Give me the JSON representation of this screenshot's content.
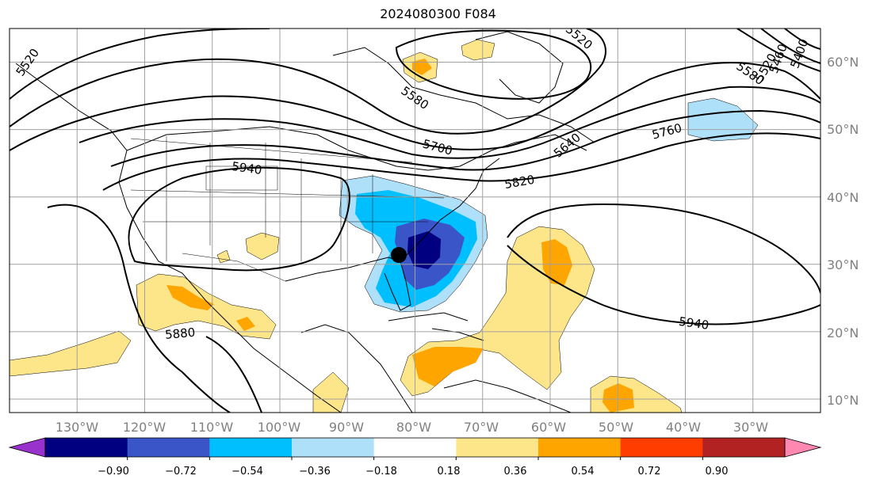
{
  "title": "2024080300 F084",
  "map": {
    "lon_range": [
      -140,
      -20
    ],
    "lat_range": [
      8,
      65
    ],
    "grid": true,
    "lon_ticks": [
      "130°W",
      "120°W",
      "110°W",
      "100°W",
      "90°W",
      "80°W",
      "70°W",
      "60°W",
      "50°W",
      "40°W",
      "30°W"
    ],
    "lat_ticks": [
      "10°N",
      "20°N",
      "30°N",
      "40°N",
      "50°N",
      "60°N"
    ],
    "contour_labels": [
      "5520",
      "5580",
      "5700",
      "5760",
      "5820",
      "5640",
      "5940",
      "5880",
      "5940",
      "5400",
      "5460",
      "5520",
      "5580",
      "5520"
    ],
    "storm_marker": {
      "lon": -82.5,
      "lat": 31.5
    }
  },
  "colorbar": {
    "ticks": [
      "−0.90",
      "−0.72",
      "−0.54",
      "−0.36",
      "−0.18",
      "0.18",
      "0.36",
      "0.54",
      "0.72",
      "0.90"
    ],
    "colors": [
      "#9932cc",
      "#000080",
      "#3a55c8",
      "#00bfff",
      "#afe0fa",
      "#ffffff",
      "#fde68a",
      "#ffa500",
      "#ff3d00",
      "#b22222",
      "#ff88b0"
    ]
  }
}
